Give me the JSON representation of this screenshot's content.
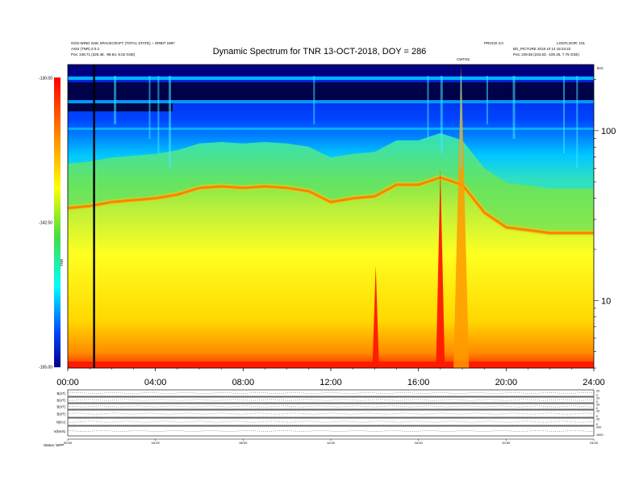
{
  "header": {
    "title": "Dynamic Spectrum for TNR 13-OCT-2018, DOY = 286",
    "left_top": "GGS-WIND GSE SPACECRAFT (TOTAL STATE) ~ ORBIT 1997",
    "left_mid": "AXIS (TNR) d 0.2",
    "left_pos_label": "Pos:",
    "left_pos": "248.71 (225.48, -99.84, 8.02 GSE)",
    "right_top_a": "PROCD 3.0",
    "right_top_b": "LOGFLOOR: 101",
    "right_mid": "BG_PICTURE  2018 10 14  15:24:22",
    "right_pos_label": "Pos:",
    "right_pos": "249.55 (234.63, -100.25, 7.75 GSE)",
    "marker_label": "CWTSS",
    "khz_label": "kHz"
  },
  "colors": {
    "bg": "#ffffff",
    "spectrum_low": "#00008c",
    "spectrum_mid": "#44dd44",
    "spectrum_high": "#ff0000",
    "colorbar_top": "#ff0000",
    "colorbar_bottom": "#00008c"
  },
  "chart_data": {
    "type": "heatmap",
    "title": "Dynamic Spectrum for TNR 13-OCT-2018, DOY = 286",
    "x_ticks": [
      "00:00",
      "04:00",
      "08:00",
      "12:00",
      "16:00",
      "20:00",
      "24:00"
    ],
    "x_range_hours": [
      0,
      24
    ],
    "y_right_ticks": [
      "100",
      "10"
    ],
    "y_scale": "log",
    "y_range_khz": [
      4,
      245
    ],
    "colorbar": {
      "label": "TNR",
      "ticks": [
        "-130.00",
        "-142.50",
        "-155.00"
      ],
      "range_db": [
        -155,
        -130
      ]
    },
    "plasma_line_khz_by_hour": {
      "hours": [
        0,
        1,
        2,
        3,
        4,
        5,
        6,
        7,
        8,
        9,
        10,
        11,
        12,
        13,
        14,
        15,
        16,
        17,
        18,
        19,
        20,
        21,
        22,
        23,
        24
      ],
      "khz": [
        35,
        36,
        38,
        39,
        40,
        42,
        46,
        47,
        46,
        47,
        46,
        44,
        38,
        40,
        41,
        48,
        48,
        53,
        48,
        33,
        27,
        26,
        25,
        25,
        25
      ]
    },
    "burst_events": [
      {
        "hour_start": 13.9,
        "hour_end": 14.2,
        "top_khz": 16
      },
      {
        "hour_start": 16.8,
        "hour_end": 17.2,
        "top_khz": 60
      },
      {
        "hour_start": 17.6,
        "hour_end": 18.3,
        "top_khz": 245
      }
    ],
    "data_gap_marker_hour": 1.2
  },
  "panels": {
    "labels": [
      "B(nT)",
      "B(nT)",
      "B(nT)",
      "B(nT)",
      "N(/cc)",
      "V(km/s)"
    ],
    "right_scale": [
      "0",
      "20",
      "0",
      "20",
      "0",
      "20",
      "0",
      "20",
      "0",
      "20",
      "1000",
      "200"
    ],
    "bottom_ticks": [
      "00:00",
      "04:00",
      "08:00",
      "12:00",
      "16:00",
      "20:00",
      "24:00"
    ],
    "footer_label": "Status:",
    "footer_value": "WFP"
  }
}
